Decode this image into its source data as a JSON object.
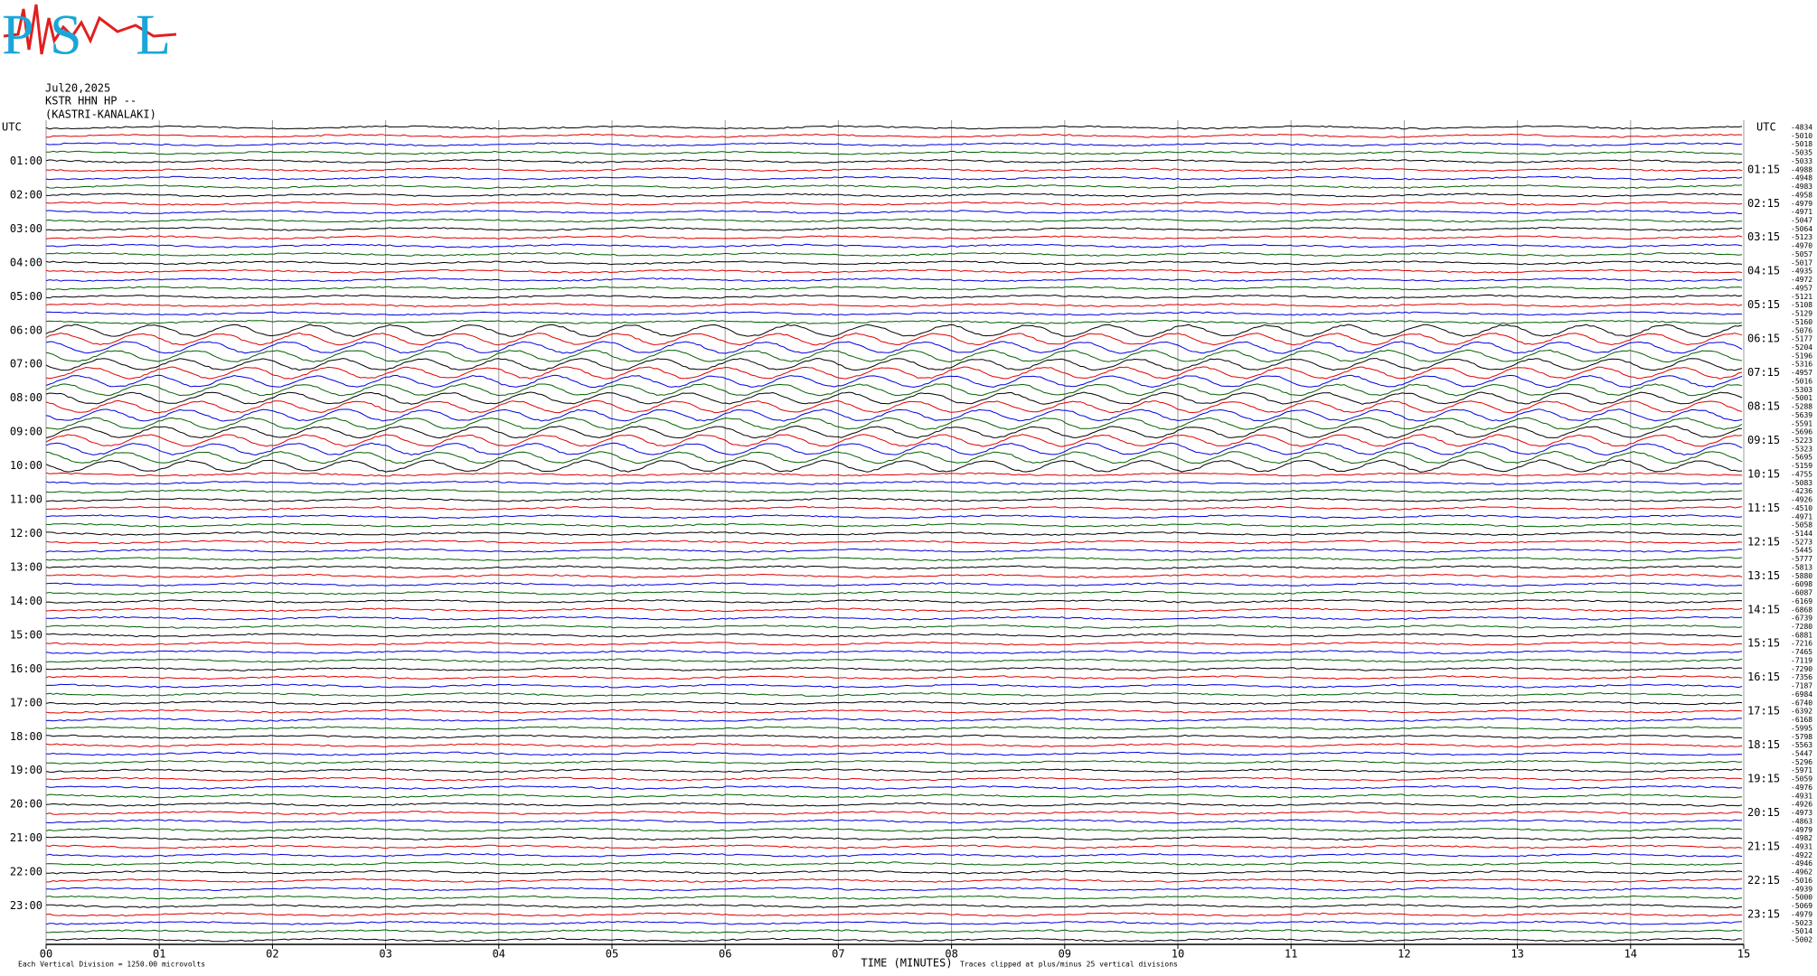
{
  "logo": {
    "letters": [
      "P",
      "S",
      "L"
    ]
  },
  "header": {
    "date": "Jul20,2025",
    "station": "KSTR HHN HP --",
    "site": "(KASTRI-KANALAKI)"
  },
  "chart_data": {
    "type": "helicorder",
    "left_corner": "UTC",
    "right_corner": "UTC",
    "left_labels": [
      "01:00",
      "02:00",
      "03:00",
      "04:00",
      "05:00",
      "06:00",
      "07:00",
      "08:00",
      "09:00",
      "10:00",
      "11:00",
      "12:00",
      "13:00",
      "14:00",
      "15:00",
      "16:00",
      "17:00",
      "18:00",
      "19:00",
      "20:00",
      "21:00",
      "22:00",
      "23:00"
    ],
    "right_labels": [
      "01:15",
      "02:15",
      "03:15",
      "04:15",
      "05:15",
      "06:15",
      "07:15",
      "08:15",
      "09:15",
      "10:15",
      "11:15",
      "12:15",
      "13:15",
      "14:15",
      "15:15",
      "16:15",
      "17:15",
      "18:15",
      "19:15",
      "20:15",
      "21:15",
      "22:15",
      "23:15"
    ],
    "trace_offsets": [
      -4834,
      -5010,
      -5018,
      -5035,
      -5033,
      -4988,
      -4948,
      -4983,
      -4958,
      -4979,
      -4971,
      -5047,
      -5064,
      -5123,
      -4970,
      -5057,
      -5017,
      -4935,
      -4972,
      -4957,
      -5121,
      -5108,
      -5129,
      -5160,
      -5076,
      -5177,
      -5204,
      -5196,
      -5316,
      -4957,
      -5016,
      -5303,
      -5001,
      -5288,
      -5639,
      -5591,
      -5696,
      -5223,
      -5323,
      -5695,
      -5159,
      -4755,
      -5083,
      -4236,
      -4926,
      -4510,
      -4971,
      -5058,
      -5144,
      -5273,
      -5445,
      -5777,
      -5813,
      -5880,
      -6098,
      -6087,
      -6169,
      -6868,
      -6739,
      -7280,
      -6881,
      -7216,
      -7465,
      -7119,
      -7290,
      -7356,
      -7187,
      -6984,
      -6740,
      -6392,
      -6168,
      -5995,
      -5798,
      -5563,
      -5447,
      -5296,
      -5971,
      -5059,
      -4976,
      -4931,
      -4926,
      -4973,
      -4863,
      -4979,
      -4982,
      -4931,
      -4922,
      -4946,
      -4962,
      -5016,
      -4939,
      -5000,
      -5069,
      -4979,
      -5023,
      -5014,
      -5002
    ],
    "trace_colors": [
      "#000000",
      "#e00000",
      "#0000e0",
      "#006000"
    ],
    "xlabel": "TIME (MINUTES)",
    "xlim": [
      0,
      15
    ],
    "xticks": [
      {
        "value": 0,
        "label": "00"
      },
      {
        "value": 1,
        "label": "01"
      },
      {
        "value": 2,
        "label": "02"
      },
      {
        "value": 3,
        "label": "03"
      },
      {
        "value": 4,
        "label": "04"
      },
      {
        "value": 5,
        "label": "05"
      },
      {
        "value": 6,
        "label": "06"
      },
      {
        "value": 7,
        "label": "07"
      },
      {
        "value": 8,
        "label": "08"
      },
      {
        "value": 9,
        "label": "09"
      },
      {
        "value": 10,
        "label": "10"
      },
      {
        "value": 11,
        "label": "11"
      },
      {
        "value": 12,
        "label": "12"
      },
      {
        "value": 13,
        "label": "13"
      },
      {
        "value": 14,
        "label": "14"
      },
      {
        "value": 15,
        "label": "15"
      }
    ],
    "grid": true,
    "footnote_left": "Each Vertical Division = 1250.00 microvolts",
    "footnote_right": "Traces clipped at plus/minus 25 vertical divisions"
  }
}
